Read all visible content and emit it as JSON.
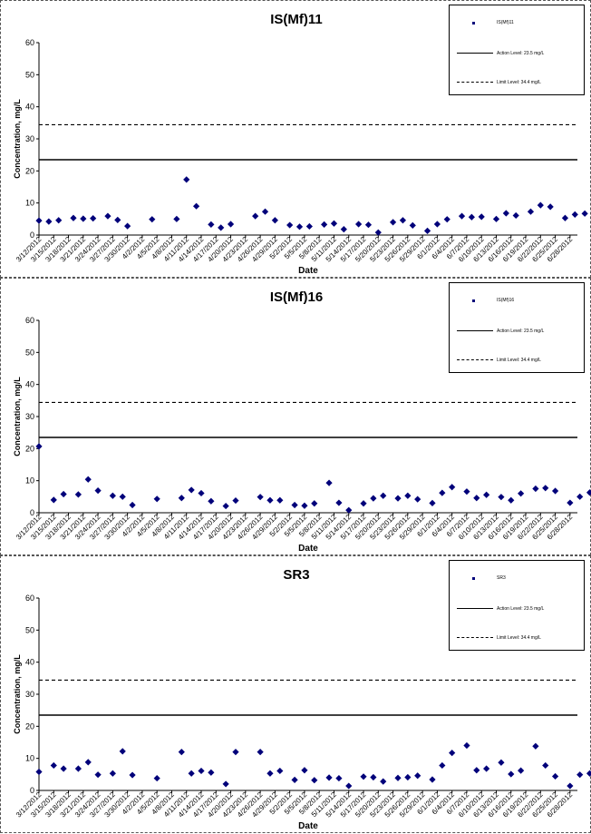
{
  "chart_data": [
    {
      "type": "scatter",
      "title": "IS(Mf)11",
      "xlabel": "Date",
      "ylabel": "Concentration, mg/L",
      "ylim": [
        0,
        60
      ],
      "yticks": [
        "0",
        "10",
        "20",
        "30",
        "40",
        "50",
        "60"
      ],
      "xlim": [
        "3/12/2012",
        "6/28/2012"
      ],
      "x_tick_labels": [
        "3/12/2012",
        "3/15/2012",
        "3/18/2012",
        "3/21/2012",
        "3/24/2012",
        "3/27/2012",
        "3/30/2012",
        "4/2/2012",
        "4/5/2012",
        "4/8/2012",
        "4/11/2012",
        "4/14/2012",
        "4/17/2012",
        "4/20/2012",
        "4/23/2012",
        "4/26/2012",
        "4/29/2012",
        "5/2/2012",
        "5/5/2012",
        "5/8/2012",
        "5/11/2012",
        "5/14/2012",
        "5/17/2012",
        "5/20/2012",
        "5/23/2012",
        "5/26/2012",
        "5/29/2012",
        "6/1/2012",
        "6/4/2012",
        "6/7/2012",
        "6/10/2012",
        "6/13/2012",
        "6/16/2012",
        "6/19/2012",
        "6/22/2012",
        "6/25/2012",
        "6/28/2012"
      ],
      "series": [
        {
          "name": "IS(Mf)11",
          "color": "#00007a",
          "points": [
            {
              "x": "3/12/2012",
              "y": 4.5
            },
            {
              "x": "3/14/2012",
              "y": 4.2
            },
            {
              "x": "3/16/2012",
              "y": 4.6
            },
            {
              "x": "3/19/2012",
              "y": 5.3
            },
            {
              "x": "3/21/2012",
              "y": 5.1
            },
            {
              "x": "3/23/2012",
              "y": 5.2
            },
            {
              "x": "3/26/2012",
              "y": 5.9
            },
            {
              "x": "3/28/2012",
              "y": 4.7
            },
            {
              "x": "3/30/2012",
              "y": 2.8
            },
            {
              "x": "4/4/2012",
              "y": 4.9
            },
            {
              "x": "4/9/2012",
              "y": 5.0
            },
            {
              "x": "4/11/2012",
              "y": 17.3
            },
            {
              "x": "4/13/2012",
              "y": 9.0
            },
            {
              "x": "4/16/2012",
              "y": 3.3
            },
            {
              "x": "4/18/2012",
              "y": 2.3
            },
            {
              "x": "4/20/2012",
              "y": 3.4
            },
            {
              "x": "4/25/2012",
              "y": 5.9
            },
            {
              "x": "4/27/2012",
              "y": 7.3
            },
            {
              "x": "4/29/2012",
              "y": 4.6
            },
            {
              "x": "5/2/2012",
              "y": 3.1
            },
            {
              "x": "5/4/2012",
              "y": 2.6
            },
            {
              "x": "5/6/2012",
              "y": 2.7
            },
            {
              "x": "5/9/2012",
              "y": 3.3
            },
            {
              "x": "5/11/2012",
              "y": 3.6
            },
            {
              "x": "5/13/2012",
              "y": 1.8
            },
            {
              "x": "5/16/2012",
              "y": 3.4
            },
            {
              "x": "5/18/2012",
              "y": 3.2
            },
            {
              "x": "5/20/2012",
              "y": 0.8
            },
            {
              "x": "5/23/2012",
              "y": 4.0
            },
            {
              "x": "5/25/2012",
              "y": 4.6
            },
            {
              "x": "5/27/2012",
              "y": 3.0
            },
            {
              "x": "5/30/2012",
              "y": 1.3
            },
            {
              "x": "6/1/2012",
              "y": 3.4
            },
            {
              "x": "6/3/2012",
              "y": 4.9
            },
            {
              "x": "6/6/2012",
              "y": 5.9
            },
            {
              "x": "6/8/2012",
              "y": 5.6
            },
            {
              "x": "6/10/2012",
              "y": 5.7
            },
            {
              "x": "6/13/2012",
              "y": 5.0
            },
            {
              "x": "6/15/2012",
              "y": 6.8
            },
            {
              "x": "6/17/2012",
              "y": 6.1
            },
            {
              "x": "6/20/2012",
              "y": 7.3
            },
            {
              "x": "6/22/2012",
              "y": 9.3
            },
            {
              "x": "6/24/2012",
              "y": 8.8
            },
            {
              "x": "6/27/2012",
              "y": 5.3
            },
            {
              "x": "6/29/2012",
              "y": 6.4
            },
            {
              "x": "7/1/2012",
              "y": 6.7
            }
          ]
        }
      ],
      "lines": [
        {
          "label": "Action Level: 23.5 mg/L",
          "y": 23.5,
          "style": "solid"
        },
        {
          "label": "Limit Level: 34.4 mg/L",
          "y": 34.4,
          "style": "dashed"
        }
      ],
      "legend": {
        "placement": "top-right",
        "marker_label": "IS(Mf)11"
      }
    },
    {
      "type": "scatter",
      "title": "IS(Mf)16",
      "xlabel": "Date",
      "ylabel": "Concentration, mg/L",
      "ylim": [
        0,
        60
      ],
      "yticks": [
        "0",
        "10",
        "20",
        "30",
        "40",
        "50",
        "60"
      ],
      "xlim": [
        "3/12/2012",
        "6/28/2012"
      ],
      "x_tick_labels": [
        "3/12/2012",
        "3/15/2012",
        "3/18/2012",
        "3/21/2012",
        "3/24/2012",
        "3/27/2012",
        "3/30/2012",
        "4/2/2012",
        "4/5/2012",
        "4/8/2012",
        "4/11/2012",
        "4/14/2012",
        "4/17/2012",
        "4/20/2012",
        "4/23/2012",
        "4/26/2012",
        "4/29/2012",
        "5/2/2012",
        "5/5/2012",
        "5/8/2012",
        "5/11/2012",
        "5/14/2012",
        "5/17/2012",
        "5/20/2012",
        "5/23/2012",
        "5/26/2012",
        "5/29/2012",
        "6/1/2012",
        "6/4/2012",
        "6/7/2012",
        "6/10/2012",
        "6/13/2012",
        "6/16/2012",
        "6/19/2012",
        "6/22/2012",
        "6/25/2012",
        "6/28/2012"
      ],
      "series": [
        {
          "name": "IS(Mf)16",
          "color": "#00007a",
          "points": [
            {
              "x": "3/12/2012",
              "y": 20.7
            },
            {
              "x": "3/15/2012",
              "y": 4.0
            },
            {
              "x": "3/17/2012",
              "y": 5.8
            },
            {
              "x": "3/20/2012",
              "y": 5.7
            },
            {
              "x": "3/22/2012",
              "y": 10.4
            },
            {
              "x": "3/24/2012",
              "y": 6.9
            },
            {
              "x": "3/27/2012",
              "y": 5.3
            },
            {
              "x": "3/29/2012",
              "y": 5.0
            },
            {
              "x": "3/31/2012",
              "y": 2.4
            },
            {
              "x": "4/5/2012",
              "y": 4.3
            },
            {
              "x": "4/10/2012",
              "y": 4.6
            },
            {
              "x": "4/12/2012",
              "y": 7.1
            },
            {
              "x": "4/14/2012",
              "y": 6.1
            },
            {
              "x": "4/16/2012",
              "y": 3.6
            },
            {
              "x": "4/19/2012",
              "y": 2.1
            },
            {
              "x": "4/21/2012",
              "y": 3.8
            },
            {
              "x": "4/26/2012",
              "y": 4.9
            },
            {
              "x": "4/28/2012",
              "y": 3.9
            },
            {
              "x": "4/30/2012",
              "y": 3.9
            },
            {
              "x": "5/3/2012",
              "y": 2.4
            },
            {
              "x": "5/5/2012",
              "y": 2.2
            },
            {
              "x": "5/7/2012",
              "y": 2.9
            },
            {
              "x": "5/10/2012",
              "y": 9.3
            },
            {
              "x": "5/12/2012",
              "y": 3.1
            },
            {
              "x": "5/14/2012",
              "y": 0.8
            },
            {
              "x": "5/17/2012",
              "y": 2.9
            },
            {
              "x": "5/19/2012",
              "y": 4.5
            },
            {
              "x": "5/21/2012",
              "y": 5.3
            },
            {
              "x": "5/24/2012",
              "y": 4.5
            },
            {
              "x": "5/26/2012",
              "y": 5.3
            },
            {
              "x": "5/28/2012",
              "y": 4.2
            },
            {
              "x": "5/31/2012",
              "y": 3.0
            },
            {
              "x": "6/2/2012",
              "y": 6.2
            },
            {
              "x": "6/4/2012",
              "y": 8.0
            },
            {
              "x": "6/7/2012",
              "y": 6.6
            },
            {
              "x": "6/9/2012",
              "y": 4.6
            },
            {
              "x": "6/11/2012",
              "y": 5.6
            },
            {
              "x": "6/14/2012",
              "y": 4.9
            },
            {
              "x": "6/16/2012",
              "y": 3.9
            },
            {
              "x": "6/18/2012",
              "y": 6.0
            },
            {
              "x": "6/21/2012",
              "y": 7.5
            },
            {
              "x": "6/23/2012",
              "y": 7.7
            },
            {
              "x": "6/25/2012",
              "y": 6.8
            },
            {
              "x": "6/28/2012",
              "y": 3.1
            },
            {
              "x": "6/30/2012",
              "y": 5.0
            },
            {
              "x": "7/2/2012",
              "y": 6.3
            }
          ]
        }
      ],
      "lines": [
        {
          "label": "Action Level: 23.5 mg/L",
          "y": 23.5,
          "style": "solid"
        },
        {
          "label": "Limit Level: 34.4 mg/L",
          "y": 34.4,
          "style": "dashed"
        }
      ],
      "legend": {
        "placement": "top-right",
        "marker_label": "IS(Mf)16"
      }
    },
    {
      "type": "scatter",
      "title": "SR3",
      "xlabel": "Date",
      "ylabel": "Concentration, mg/L",
      "ylim": [
        0,
        60
      ],
      "yticks": [
        "0",
        "10",
        "20",
        "30",
        "40",
        "50",
        "60"
      ],
      "xlim": [
        "3/12/2012",
        "6/28/2012"
      ],
      "x_tick_labels": [
        "3/12/2012",
        "3/15/2012",
        "3/18/2012",
        "3/21/2012",
        "3/24/2012",
        "3/27/2012",
        "3/30/2012",
        "4/2/2012",
        "4/5/2012",
        "4/8/2012",
        "4/11/2012",
        "4/14/2012",
        "4/17/2012",
        "4/20/2012",
        "4/23/2012",
        "4/26/2012",
        "4/29/2012",
        "5/2/2012",
        "5/5/2012",
        "5/8/2012",
        "5/11/2012",
        "5/14/2012",
        "5/17/2012",
        "5/20/2012",
        "5/23/2012",
        "5/26/2012",
        "5/29/2012",
        "6/1/2012",
        "6/4/2012",
        "6/7/2012",
        "6/10/2012",
        "6/13/2012",
        "6/16/2012",
        "6/19/2012",
        "6/22/2012",
        "6/25/2012",
        "6/28/2012"
      ],
      "series": [
        {
          "name": "SR3",
          "color": "#00007a",
          "points": [
            {
              "x": "3/12/2012",
              "y": 5.8
            },
            {
              "x": "3/15/2012",
              "y": 7.8
            },
            {
              "x": "3/17/2012",
              "y": 6.8
            },
            {
              "x": "3/20/2012",
              "y": 6.8
            },
            {
              "x": "3/22/2012",
              "y": 8.8
            },
            {
              "x": "3/24/2012",
              "y": 4.9
            },
            {
              "x": "3/27/2012",
              "y": 5.3
            },
            {
              "x": "3/29/2012",
              "y": 12.2
            },
            {
              "x": "3/31/2012",
              "y": 4.8
            },
            {
              "x": "4/5/2012",
              "y": 3.8
            },
            {
              "x": "4/10/2012",
              "y": 12.0
            },
            {
              "x": "4/12/2012",
              "y": 5.3
            },
            {
              "x": "4/14/2012",
              "y": 6.1
            },
            {
              "x": "4/16/2012",
              "y": 5.6
            },
            {
              "x": "4/19/2012",
              "y": 2.0
            },
            {
              "x": "4/21/2012",
              "y": 12.0
            },
            {
              "x": "4/26/2012",
              "y": 12.0
            },
            {
              "x": "4/28/2012",
              "y": 5.3
            },
            {
              "x": "4/30/2012",
              "y": 6.1
            },
            {
              "x": "5/3/2012",
              "y": 3.3
            },
            {
              "x": "5/5/2012",
              "y": 6.3
            },
            {
              "x": "5/7/2012",
              "y": 3.2
            },
            {
              "x": "5/10/2012",
              "y": 4.0
            },
            {
              "x": "5/12/2012",
              "y": 3.8
            },
            {
              "x": "5/14/2012",
              "y": 1.4
            },
            {
              "x": "5/17/2012",
              "y": 4.3
            },
            {
              "x": "5/19/2012",
              "y": 4.1
            },
            {
              "x": "5/21/2012",
              "y": 2.8
            },
            {
              "x": "5/24/2012",
              "y": 3.9
            },
            {
              "x": "5/26/2012",
              "y": 4.1
            },
            {
              "x": "5/28/2012",
              "y": 4.6
            },
            {
              "x": "5/31/2012",
              "y": 3.4
            },
            {
              "x": "6/2/2012",
              "y": 7.8
            },
            {
              "x": "6/4/2012",
              "y": 11.7
            },
            {
              "x": "6/7/2012",
              "y": 14.0
            },
            {
              "x": "6/9/2012",
              "y": 6.3
            },
            {
              "x": "6/11/2012",
              "y": 6.8
            },
            {
              "x": "6/14/2012",
              "y": 8.7
            },
            {
              "x": "6/16/2012",
              "y": 5.1
            },
            {
              "x": "6/18/2012",
              "y": 6.2
            },
            {
              "x": "6/21/2012",
              "y": 13.8
            },
            {
              "x": "6/23/2012",
              "y": 7.8
            },
            {
              "x": "6/25/2012",
              "y": 4.4
            },
            {
              "x": "6/28/2012",
              "y": 1.4
            },
            {
              "x": "6/30/2012",
              "y": 4.9
            },
            {
              "x": "7/2/2012",
              "y": 5.3
            }
          ]
        }
      ],
      "lines": [
        {
          "label": "Action Level: 23.5 mg/L",
          "y": 23.5,
          "style": "solid"
        },
        {
          "label": "Limit Level: 34.4 mg/L",
          "y": 34.4,
          "style": "dashed"
        }
      ],
      "legend": {
        "placement": "top-right",
        "marker_label": "SR3"
      }
    }
  ]
}
